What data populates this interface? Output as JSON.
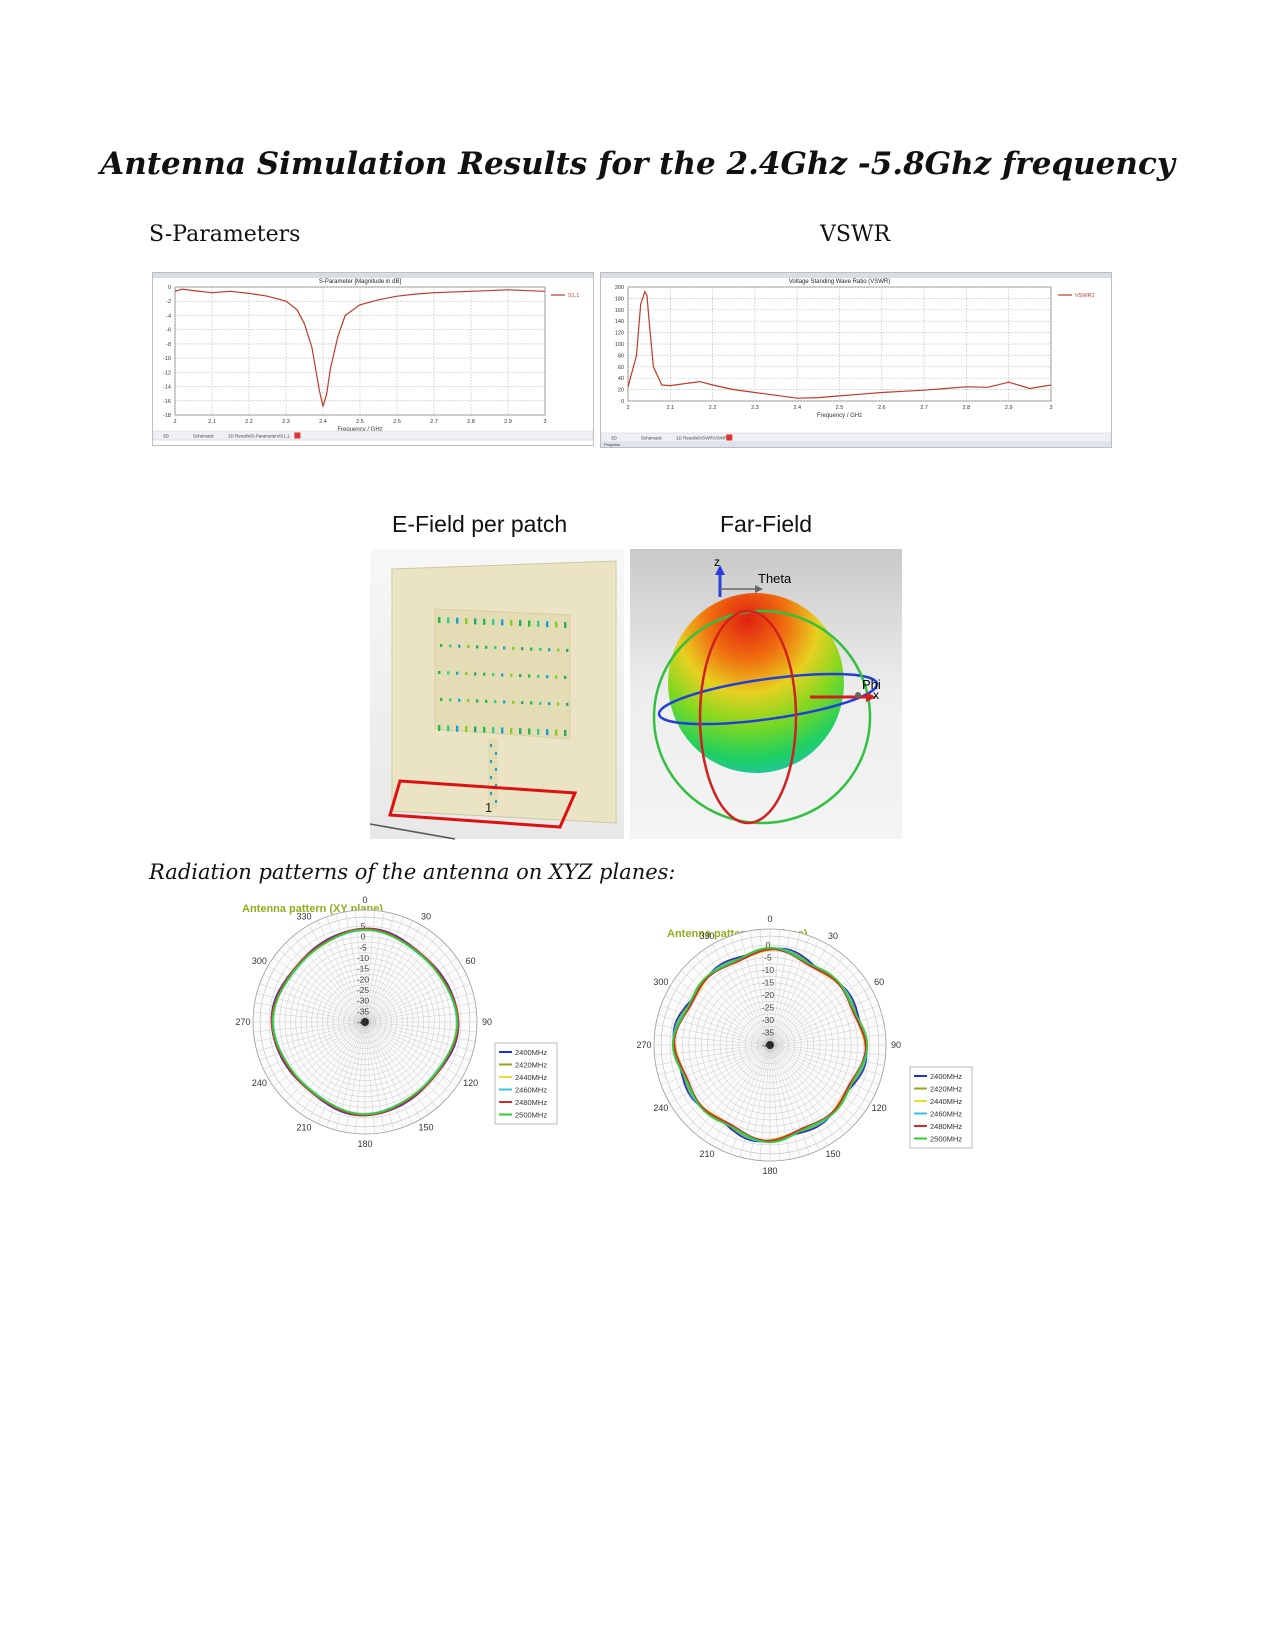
{
  "document": {
    "title": "Antenna Simulation Results for the 2.4Ghz -5.8Ghz frequency",
    "sections": {
      "s_parameters": "S-Parameters",
      "vswr": "VSWR",
      "e_field": "E-Field per patch",
      "far_field": "Far-Field",
      "radiation": "Radiation patterns of the antenna on XYZ planes:"
    },
    "efield_port_label": "1",
    "farfield_axes": {
      "z": "z",
      "theta": "Theta",
      "phi": "Phi",
      "x": "x"
    },
    "sim_tabs": {
      "s_param": [
        "3D",
        "Schematic",
        "1D Results\\S-Parameters\\S1,1"
      ],
      "vswr": [
        "3D",
        "Schematic",
        "1D Results\\VSWR\\VSWR1"
      ],
      "vswr_bottom": "Progress"
    }
  },
  "chart_data": [
    {
      "type": "line",
      "title": "S-Parameter [Magnitude in dB]",
      "xlabel": "Frequency / GHz",
      "ylabel": "",
      "xlim": [
        2,
        3
      ],
      "ylim": [
        -18,
        0
      ],
      "x_ticks": [
        "2",
        "2.1",
        "2.2",
        "2.3",
        "2.4",
        "2.5",
        "2.6",
        "2.7",
        "2.8",
        "2.9",
        "3"
      ],
      "y_ticks": [
        "0",
        "-2",
        "-4",
        "-6",
        "-8",
        "-10",
        "-12",
        "-14",
        "-16",
        "-18"
      ],
      "grid": true,
      "legend_position": "right",
      "color": "#c0392b",
      "series": [
        {
          "name": "S1,1",
          "x": [
            2.0,
            2.02,
            2.05,
            2.1,
            2.15,
            2.2,
            2.25,
            2.3,
            2.33,
            2.35,
            2.37,
            2.38,
            2.39,
            2.4,
            2.41,
            2.42,
            2.44,
            2.46,
            2.5,
            2.55,
            2.6,
            2.65,
            2.7,
            2.8,
            2.9,
            3.0
          ],
          "values": [
            -0.6,
            -0.3,
            -0.5,
            -0.8,
            -0.6,
            -0.9,
            -1.3,
            -2.0,
            -3.2,
            -5.2,
            -8.5,
            -11.5,
            -14.5,
            -16.8,
            -15.0,
            -11.5,
            -7.0,
            -4.0,
            -2.5,
            -1.8,
            -1.3,
            -1.0,
            -0.8,
            -0.6,
            -0.4,
            -0.6
          ]
        }
      ]
    },
    {
      "type": "line",
      "title": "Voltage Standing Wave Ratio (VSWR)",
      "xlabel": "Frequency / GHz",
      "ylabel": "",
      "xlim": [
        2,
        3
      ],
      "ylim": [
        0,
        200
      ],
      "x_ticks": [
        "2",
        "2.1",
        "2.2",
        "2.3",
        "2.4",
        "2.5",
        "2.6",
        "2.7",
        "2.8",
        "2.9",
        "3"
      ],
      "y_ticks": [
        "200",
        "180",
        "160",
        "140",
        "120",
        "100",
        "80",
        "60",
        "40",
        "20",
        "0"
      ],
      "grid": true,
      "legend_position": "right",
      "color": "#c0392b",
      "series": [
        {
          "name": "VSWR1",
          "x": [
            2.0,
            2.02,
            2.03,
            2.04,
            2.045,
            2.05,
            2.06,
            2.08,
            2.1,
            2.13,
            2.17,
            2.2,
            2.25,
            2.3,
            2.35,
            2.4,
            2.45,
            2.5,
            2.55,
            2.6,
            2.65,
            2.7,
            2.75,
            2.8,
            2.85,
            2.9,
            2.95,
            3.0
          ],
          "values": [
            25,
            80,
            170,
            192,
            185,
            140,
            60,
            28,
            27,
            30,
            34,
            28,
            20,
            15,
            10,
            5,
            6,
            9,
            12,
            15,
            17,
            19,
            22,
            25,
            24,
            33,
            22,
            28
          ]
        }
      ]
    },
    {
      "type": "polar",
      "title": "Antenna pattern (XY plane)",
      "rlim": [
        -40,
        5
      ],
      "r_ticks": [
        "5",
        "0",
        "-5",
        "-10",
        "-15",
        "-20",
        "-25",
        "-30",
        "-35",
        "-40"
      ],
      "angle_ticks": [
        "0",
        "30",
        "60",
        "90",
        "120",
        "150",
        "180",
        "210",
        "240",
        "270",
        "300",
        "330"
      ],
      "legend_position": "right",
      "series": [
        {
          "name": "2400MHz",
          "color": "#1f2fd1"
        },
        {
          "name": "2420MHz",
          "color": "#9aa21e"
        },
        {
          "name": "2440MHz",
          "color": "#e8e030"
        },
        {
          "name": "2460MHz",
          "color": "#35c7e0"
        },
        {
          "name": "2480MHz",
          "color": "#d42a2a"
        },
        {
          "name": "2500MHz",
          "color": "#33cc33"
        }
      ]
    },
    {
      "type": "polar",
      "title": "Antenna pattern (XZ plane)",
      "rlim": [
        -40,
        0
      ],
      "r_ticks": [
        "0",
        "-5",
        "-10",
        "-15",
        "-20",
        "-25",
        "-30",
        "-35",
        "-40"
      ],
      "angle_ticks": [
        "0",
        "30",
        "60",
        "90",
        "120",
        "150",
        "180",
        "210",
        "240",
        "270",
        "300",
        "330"
      ],
      "legend_position": "right",
      "series": [
        {
          "name": "2400MHz",
          "color": "#1f2fd1"
        },
        {
          "name": "2420MHz",
          "color": "#9aa21e"
        },
        {
          "name": "2440MHz",
          "color": "#e8e030"
        },
        {
          "name": "2460MHz",
          "color": "#35c7e0"
        },
        {
          "name": "2480MHz",
          "color": "#d42a2a"
        },
        {
          "name": "2500MHz",
          "color": "#33cc33"
        }
      ]
    }
  ]
}
